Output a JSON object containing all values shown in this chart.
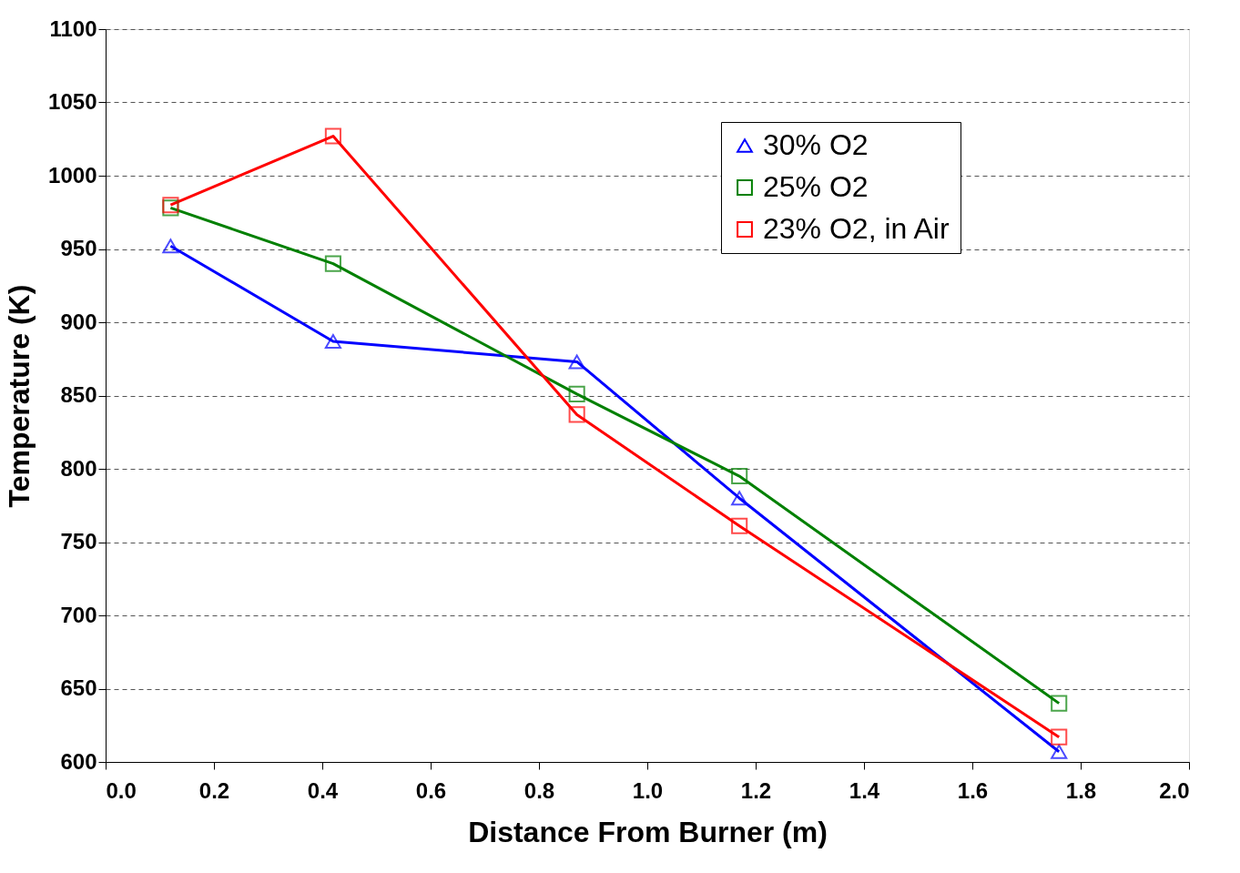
{
  "chart_data": {
    "type": "line",
    "xlabel": "Distance From Burner (m)",
    "ylabel": "Temperature (K)",
    "xlim": [
      0,
      2
    ],
    "xticks": [
      {
        "value": 0,
        "label": "0.0"
      },
      {
        "value": 0.2,
        "label": "0.2"
      },
      {
        "value": 0.4,
        "label": "0.4"
      },
      {
        "value": 0.6,
        "label": "0.6"
      },
      {
        "value": 0.8,
        "label": "0.8"
      },
      {
        "value": 1,
        "label": "1.0"
      },
      {
        "value": 1.2,
        "label": "1.2"
      },
      {
        "value": 1.4,
        "label": "1.4"
      },
      {
        "value": 1.6,
        "label": "1.6"
      },
      {
        "value": 1.8,
        "label": "1.8"
      },
      {
        "value": 2,
        "label": "2.0"
      }
    ],
    "ylim": [
      600,
      1100
    ],
    "yticks": [
      600,
      650,
      700,
      750,
      800,
      850,
      900,
      950,
      1000,
      1050,
      1100
    ],
    "grid": "y",
    "legend": "top right",
    "line_style": "solid",
    "x": [
      0.12,
      0.42,
      0.87,
      1.17,
      1.76
    ],
    "series": [
      {
        "name": "30% O2",
        "color": "#0000ff",
        "marker": "triangle",
        "values": [
          952,
          887,
          873,
          780,
          607
        ]
      },
      {
        "name": "25% O2",
        "color": "#008000",
        "marker": "square",
        "values": [
          978,
          940,
          851,
          795,
          640
        ]
      },
      {
        "name": "23% O2, in Air",
        "color": "#ff0000",
        "marker": "square",
        "values": [
          980,
          1027,
          837,
          761,
          617
        ]
      }
    ]
  }
}
